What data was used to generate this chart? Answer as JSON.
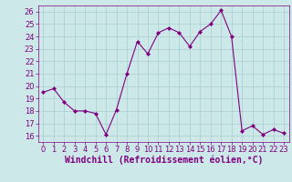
{
  "x": [
    0,
    1,
    2,
    3,
    4,
    5,
    6,
    7,
    8,
    9,
    10,
    11,
    12,
    13,
    14,
    15,
    16,
    17,
    18,
    19,
    20,
    21,
    22,
    23
  ],
  "y": [
    19.5,
    19.8,
    18.7,
    18.0,
    18.0,
    17.8,
    16.1,
    18.1,
    21.0,
    23.6,
    22.6,
    24.3,
    24.7,
    24.3,
    23.2,
    24.4,
    25.0,
    26.1,
    24.0,
    16.4,
    16.8,
    16.1,
    16.5,
    16.2
  ],
  "line_color": "#800080",
  "marker": "D",
  "marker_size": 2,
  "bg_color": "#cce8e8",
  "grid_color": "#aacece",
  "xlabel": "Windchill (Refroidissement éolien,°C)",
  "xlabel_color": "#800080",
  "ylim": [
    15.5,
    26.5
  ],
  "xlim": [
    -0.5,
    23.5
  ],
  "yticks": [
    16,
    17,
    18,
    19,
    20,
    21,
    22,
    23,
    24,
    25,
    26
  ],
  "xticks": [
    0,
    1,
    2,
    3,
    4,
    5,
    6,
    7,
    8,
    9,
    10,
    11,
    12,
    13,
    14,
    15,
    16,
    17,
    18,
    19,
    20,
    21,
    22,
    23
  ],
  "tick_color": "#800080",
  "tick_fontsize": 6,
  "xlabel_fontsize": 7
}
